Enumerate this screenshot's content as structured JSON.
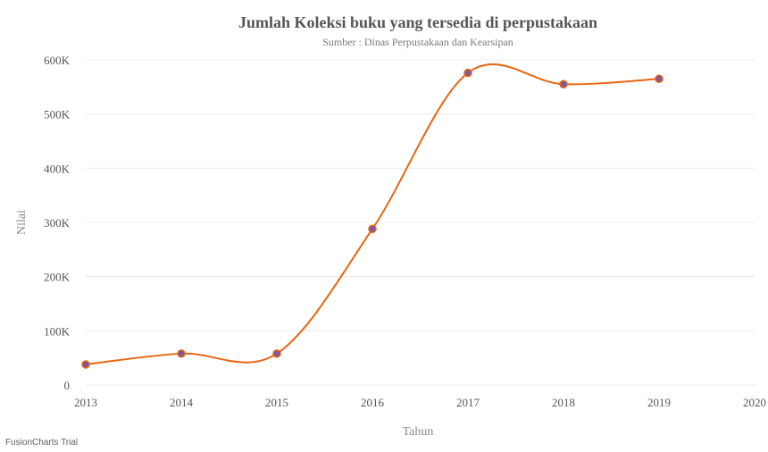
{
  "chart_data": {
    "type": "line",
    "title": "Jumlah Koleksi buku yang tersedia di perpustakaan",
    "subtitle": "Sumber : Dinas Perpustakaan dan Kearsipan",
    "xlabel": "Tahun",
    "ylabel": "Nilai",
    "x": [
      2013,
      2014,
      2015,
      2016,
      2017,
      2018,
      2019
    ],
    "series": [
      {
        "values": [
          38000,
          58000,
          58000,
          288000,
          576000,
          555000,
          565000
        ]
      }
    ],
    "xlim": [
      2013,
      2020
    ],
    "ylim": [
      0,
      600000
    ],
    "x_ticks": [
      "2013",
      "2014",
      "2015",
      "2016",
      "2017",
      "2018",
      "2019",
      "2020"
    ],
    "y_ticks": [
      {
        "value": 0,
        "label": "0"
      },
      {
        "value": 100000,
        "label": "100K"
      },
      {
        "value": 200000,
        "label": "200K"
      },
      {
        "value": 300000,
        "label": "300K"
      },
      {
        "value": 400000,
        "label": "400K"
      },
      {
        "value": 500000,
        "label": "500K"
      },
      {
        "value": 600000,
        "label": "600K"
      }
    ],
    "grid": true,
    "line_color": "#e8650f",
    "marker_fill": "#7a5aa0",
    "marker_stroke": "#e8650f"
  },
  "watermark": "FusionCharts Trial"
}
